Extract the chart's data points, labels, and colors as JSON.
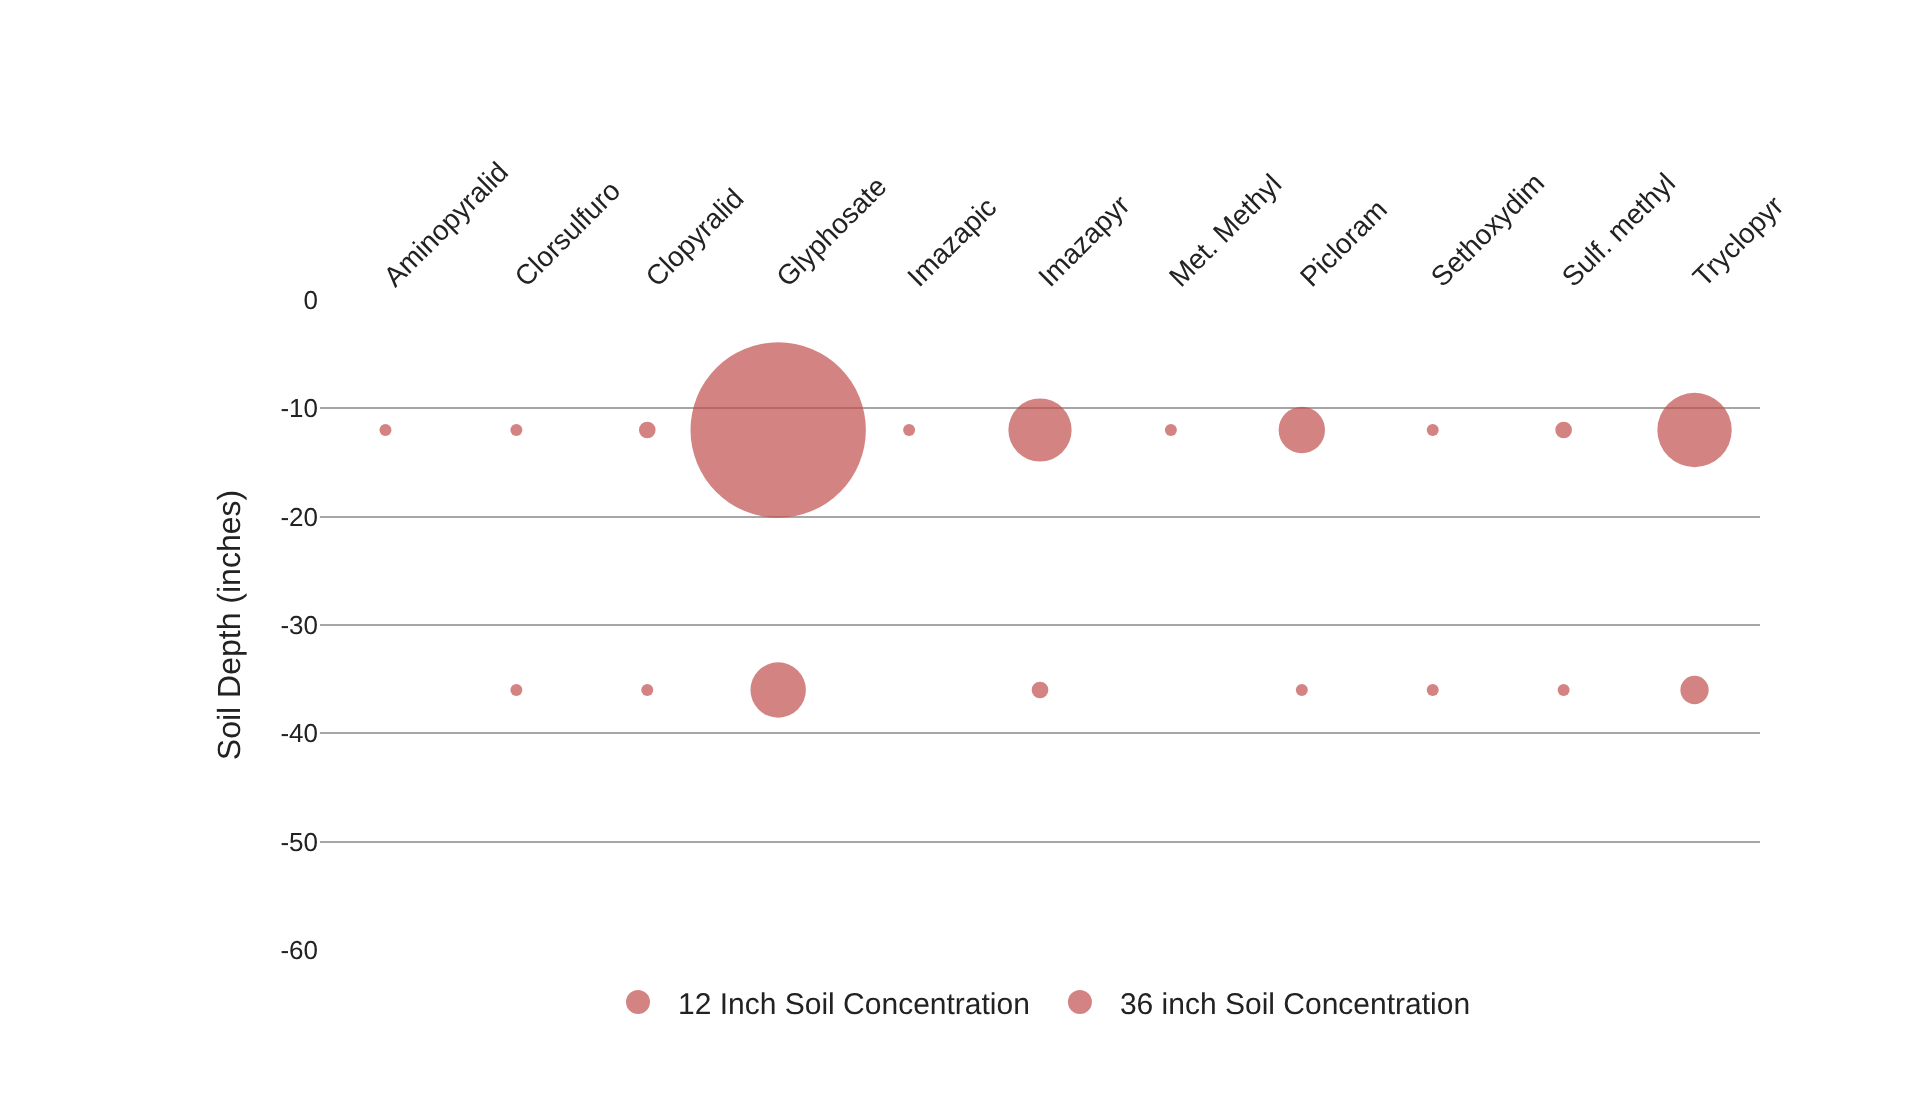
{
  "chart_data": {
    "type": "bubble",
    "ylabel": "Soil Depth (inches)",
    "categories": [
      "Aminopyralid",
      "Clorsulfuro",
      "Clopyralid",
      "Glyphosate",
      "Imazapic",
      "Imazapyr",
      "Met. Methyl",
      "Picloram",
      "Sethoxydim",
      "Sulf. methyl",
      "Tryclopyr"
    ],
    "series": [
      {
        "name": "12 Inch Soil Concentration",
        "color": "#c0504d",
        "values": [
          -12,
          -12,
          -12,
          -12,
          -12,
          -12,
          -12,
          -12,
          -12,
          -12,
          -12
        ],
        "sizes": [
          0.003,
          0.003,
          0.009,
          1,
          0.003,
          0.13,
          0.003,
          0.07,
          0.004,
          0.009,
          0.18
        ]
      },
      {
        "name": "36 inch Soil Concentration",
        "color": "#c0504d",
        "values": [
          null,
          -36,
          -36,
          -36,
          null,
          -36,
          null,
          -36,
          -36,
          -36,
          -36
        ],
        "sizes": [
          null,
          0.003,
          0.003,
          0.1,
          null,
          0.009,
          null,
          0.004,
          0.003,
          0.003,
          0.026
        ]
      }
    ],
    "ylim": [
      -60,
      0
    ],
    "yticks": [
      0,
      -10,
      -20,
      -30,
      -40,
      -50,
      -60
    ],
    "grid": "y",
    "legend": "bottom",
    "marker": "circle"
  }
}
